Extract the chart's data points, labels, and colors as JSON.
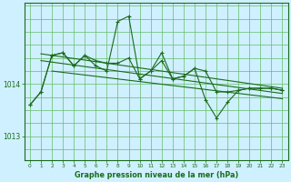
{
  "title": "Graphe pression niveau de la mer (hPa)",
  "bg_color": "#cff0ff",
  "grid_color": "#66bb66",
  "line_color": "#1a6b1a",
  "xlim": [
    -0.5,
    23.5
  ],
  "ylim": [
    1012.55,
    1015.55
  ],
  "yticks": [
    1013,
    1014
  ],
  "xticks": [
    0,
    1,
    2,
    3,
    4,
    5,
    6,
    7,
    8,
    9,
    10,
    11,
    12,
    13,
    14,
    15,
    16,
    17,
    18,
    19,
    20,
    21,
    22,
    23
  ],
  "hgrid_vals": [
    1012.75,
    1013.0,
    1013.25,
    1013.5,
    1013.75,
    1014.0,
    1014.25,
    1014.5,
    1014.75,
    1015.0,
    1015.25,
    1015.5
  ],
  "series_jagged_x": [
    0,
    1,
    2,
    3,
    4,
    5,
    6,
    7,
    8,
    9,
    10,
    11,
    12,
    13,
    14,
    15,
    16,
    17,
    18,
    19,
    20,
    21,
    22,
    23
  ],
  "series_jagged_y": [
    1013.6,
    1013.85,
    1014.55,
    1014.6,
    1014.35,
    1014.55,
    1014.35,
    1014.25,
    1015.2,
    1015.3,
    1014.1,
    1014.25,
    1014.6,
    1014.1,
    1014.15,
    1014.3,
    1013.7,
    1013.35,
    1013.65,
    1013.88,
    1013.92,
    1013.92,
    1013.92,
    1013.88
  ],
  "series_smooth_x": [
    0,
    1,
    2,
    3,
    4,
    5,
    6,
    7,
    8,
    9,
    10,
    11,
    12,
    13,
    14,
    15,
    16,
    17,
    18,
    19,
    20,
    21,
    22,
    23
  ],
  "series_smooth_y": [
    1013.6,
    1013.85,
    1014.55,
    1014.6,
    1014.35,
    1014.55,
    1014.45,
    1014.4,
    1014.4,
    1014.5,
    1014.1,
    1014.25,
    1014.45,
    1014.1,
    1014.15,
    1014.3,
    1014.25,
    1013.85,
    1013.85,
    1013.88,
    1013.92,
    1013.92,
    1013.92,
    1013.88
  ],
  "trend1_x": [
    1,
    23
  ],
  "trend1_y": [
    1014.58,
    1013.92
  ],
  "trend2_x": [
    1,
    23
  ],
  "trend2_y": [
    1014.45,
    1013.82
  ],
  "trend3_x": [
    2,
    23
  ],
  "trend3_y": [
    1014.25,
    1013.72
  ]
}
